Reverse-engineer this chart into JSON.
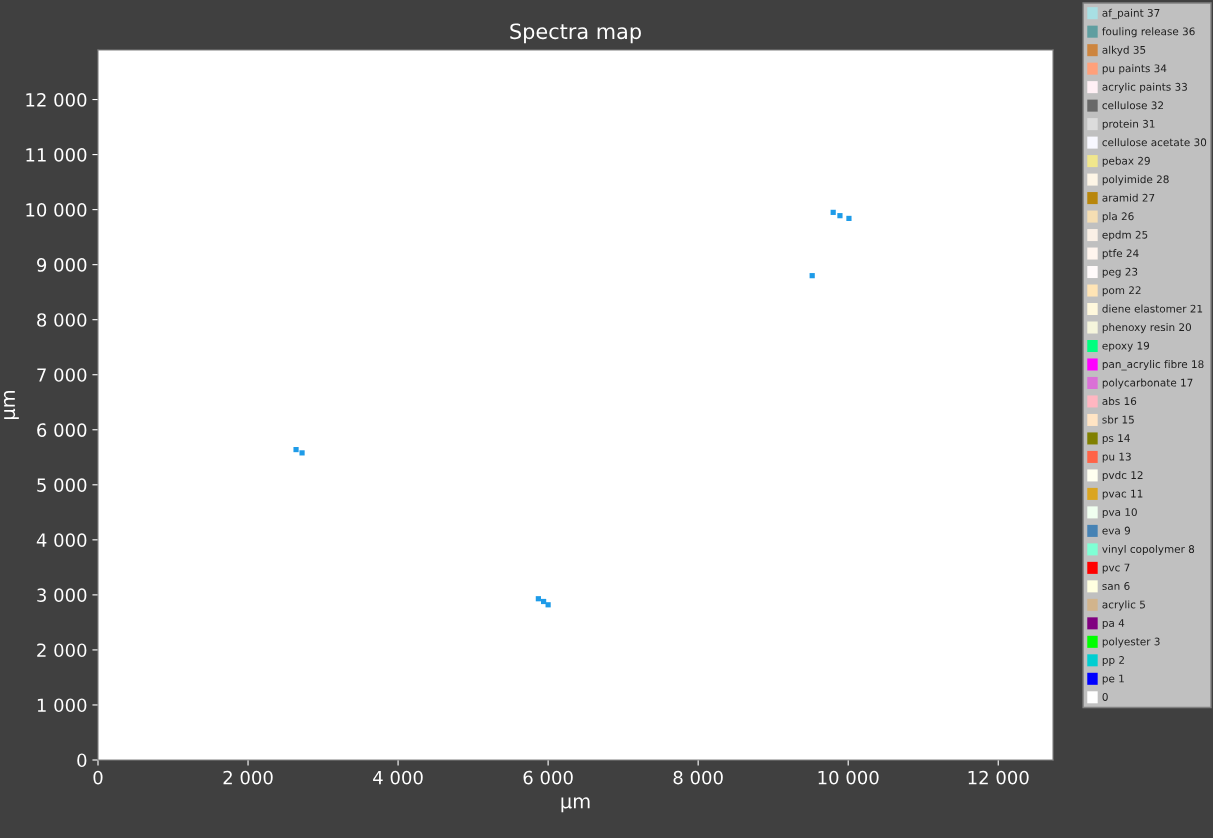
{
  "chart_data": {
    "type": "scatter",
    "title": "Spectra map",
    "xlabel": "µm",
    "ylabel": "µm",
    "xlim": [
      0,
      12730
    ],
    "ylim": [
      0,
      12900
    ],
    "xticks": [
      0,
      {
        "value": 2000,
        "label": "2 000"
      },
      {
        "value": 4000,
        "label": "4 000"
      },
      {
        "value": 6000,
        "label": "6 000"
      },
      {
        "value": 8000,
        "label": "8 000"
      },
      {
        "value": 10000,
        "label": "10 000"
      },
      {
        "value": 12000,
        "label": "12 000"
      }
    ],
    "yticks": [
      0,
      {
        "value": 1000,
        "label": "1 000"
      },
      {
        "value": 2000,
        "label": "2 000"
      },
      {
        "value": 3000,
        "label": "3 000"
      },
      {
        "value": 4000,
        "label": "4 000"
      },
      {
        "value": 5000,
        "label": "5 000"
      },
      {
        "value": 6000,
        "label": "6 000"
      },
      {
        "value": 7000,
        "label": "7 000"
      },
      {
        "value": 8000,
        "label": "8 000"
      },
      {
        "value": 9000,
        "label": "9 000"
      },
      {
        "value": 10000,
        "label": "10 000"
      },
      {
        "value": 11000,
        "label": "11 000"
      },
      {
        "value": 12000,
        "label": "12 000"
      }
    ],
    "grid": false,
    "legend": "right",
    "marker": "square",
    "series": [
      {
        "color": "#1e9be8",
        "x": [
          9800,
          9890,
          10010,
          9520,
          2640,
          2720,
          5870,
          5940,
          6000
        ],
        "values": [
          9950,
          9890,
          9840,
          8800,
          5640,
          5580,
          2930,
          2880,
          2820
        ]
      },
      {
        "name": "af_paint 37",
        "color": "#a8dfe3"
      },
      {
        "name": "fouling release 36",
        "color": "#5f9ea0"
      },
      {
        "name": "alkyd 35",
        "color": "#cd853f"
      },
      {
        "name": "pu paints 34",
        "color": "#ffa07a"
      },
      {
        "name": "acrylic paints 33",
        "color": "#fff0f5"
      },
      {
        "name": "cellulose 32",
        "color": "#696969"
      },
      {
        "name": "protein 31",
        "color": "#dcdcdc"
      },
      {
        "name": "cellulose acetate 30",
        "color": "#f8f8ff"
      },
      {
        "name": "pebax 29",
        "color": "#f0e68c"
      },
      {
        "name": "polyimide 28",
        "color": "#fdf5e6"
      },
      {
        "name": "aramid 27",
        "color": "#b8860b"
      },
      {
        "name": "pla 26",
        "color": "#f5deb3"
      },
      {
        "name": "epdm 25",
        "color": "#faf0e6"
      },
      {
        "name": "ptfe 24",
        "color": "#fff5ee"
      },
      {
        "name": "peg 23",
        "color": "#fffafa"
      },
      {
        "name": "pom 22",
        "color": "#ffe4b5"
      },
      {
        "name": "diene elastomer 21",
        "color": "#fff8dc"
      },
      {
        "name": "phenoxy resin 20",
        "color": "#f5f5dc"
      },
      {
        "name": "epoxy 19",
        "color": "#00ff7f"
      },
      {
        "name": "pan_acrylic fibre 18",
        "color": "#ff00ff"
      },
      {
        "name": "polycarbonate 17",
        "color": "#da70d6"
      },
      {
        "name": "abs 16",
        "color": "#ffb6c1"
      },
      {
        "name": "sbr 15",
        "color": "#ffe4c4"
      },
      {
        "name": "ps 14",
        "color": "#808000"
      },
      {
        "name": "pu 13",
        "color": "#ff6347"
      },
      {
        "name": "pvdc 12",
        "color": "#fffff0"
      },
      {
        "name": "pvac 11",
        "color": "#daa520"
      },
      {
        "name": "pva 10",
        "color": "#f0fff0"
      },
      {
        "name": "eva 9",
        "color": "#4682b4"
      },
      {
        "name": "vinyl copolymer 8",
        "color": "#7fffd4"
      },
      {
        "name": "pvc 7",
        "color": "#ff0000"
      },
      {
        "name": "san 6",
        "color": "#ffffe0"
      },
      {
        "name": "acrylic 5",
        "color": "#d2b48c"
      },
      {
        "name": "pa 4",
        "color": "#800080"
      },
      {
        "name": "polyester 3",
        "color": "#00ff00"
      },
      {
        "name": "pp 2",
        "color": "#00ced1"
      },
      {
        "name": "pe 1",
        "color": "#0000ff"
      },
      {
        "name": "0",
        "color": "#ffffff"
      }
    ]
  }
}
